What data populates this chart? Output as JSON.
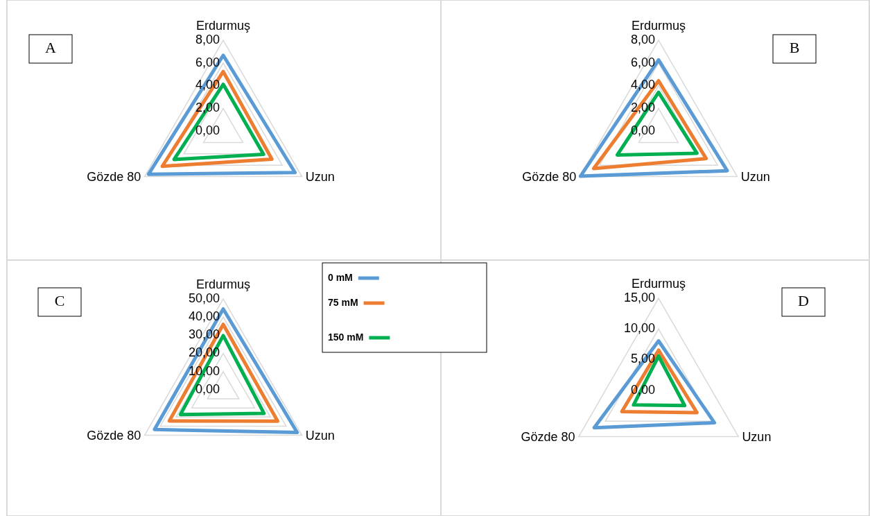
{
  "chart_data": [
    {
      "type": "radar",
      "categories": [
        "Erdurmuş",
        "Uzun",
        "Gözde 80"
      ],
      "ylim": [
        0,
        8
      ],
      "yticks": [
        {
          "value": 0,
          "label": "0,00"
        },
        {
          "value": 2,
          "label": "2,00"
        },
        {
          "value": 4,
          "label": "4,00"
        },
        {
          "value": 6,
          "label": "6,00"
        },
        {
          "value": 8,
          "label": "8,00"
        }
      ],
      "grid": true,
      "annotations": [
        "A"
      ],
      "series": [
        {
          "color": "#5b9bd5",
          "values": [
            6.67,
            7.3,
            7.6
          ]
        },
        {
          "color": "#ed7d31",
          "values": [
            5.24,
            4.95,
            6.2
          ]
        },
        {
          "color": "#00b050",
          "values": [
            4.12,
            4.1,
            5.0
          ]
        }
      ]
    },
    {
      "type": "radar",
      "categories": [
        "Erdurmuş",
        "Uzun",
        "Gözde 80"
      ],
      "ylim": [
        0,
        8
      ],
      "yticks": [
        {
          "value": 0,
          "label": "0,00"
        },
        {
          "value": 2,
          "label": "2,00"
        },
        {
          "value": 4,
          "label": "4,00"
        },
        {
          "value": 6,
          "label": "6,00"
        },
        {
          "value": 8,
          "label": "8,00"
        }
      ],
      "grid": true,
      "annotations": [
        "B"
      ],
      "series": [
        {
          "color": "#5b9bd5",
          "values": [
            6.27,
            6.98,
            7.95
          ]
        },
        {
          "color": "#ed7d31",
          "values": [
            4.43,
            4.84,
            6.6
          ]
        },
        {
          "color": "#00b050",
          "values": [
            3.41,
            3.9,
            4.2
          ]
        }
      ]
    },
    {
      "type": "radar",
      "categories": [
        "Erdurmuş",
        "Uzun",
        "Gözde 80"
      ],
      "ylim": [
        0,
        50
      ],
      "yticks": [
        {
          "value": 0,
          "label": "0,00"
        },
        {
          "value": 10,
          "label": "10,00"
        },
        {
          "value": 20,
          "label": "20,00"
        },
        {
          "value": 30,
          "label": "30,00"
        },
        {
          "value": 40,
          "label": "40,00"
        },
        {
          "value": 50,
          "label": "50,00"
        }
      ],
      "grid": true,
      "annotations": [
        "C"
      ],
      "legend": "top right",
      "series": [
        {
          "name": "0 mM",
          "color": "#5b9bd5",
          "values": [
            44.5,
            47,
            43.7
          ]
        },
        {
          "name": "75 mM",
          "color": "#ed7d31",
          "values": [
            36.0,
            34.6,
            34.3
          ]
        },
        {
          "name": "150 mM",
          "color": "#00b050",
          "values": [
            29.8,
            25.9,
            27.2
          ]
        }
      ]
    },
    {
      "type": "radar",
      "categories": [
        "Erdurmuş",
        "Uzun",
        "Gözde 80"
      ],
      "ylim": [
        0,
        15
      ],
      "yticks": [
        {
          "value": 0,
          "label": "0,00"
        },
        {
          "value": 5,
          "label": "5,00"
        },
        {
          "value": 10,
          "label": "10,00"
        },
        {
          "value": 15,
          "label": "15,00"
        }
      ],
      "grid": true,
      "annotations": [
        "D"
      ],
      "series": [
        {
          "color": "#5b9bd5",
          "values": [
            8.06,
            10.5,
            12.1
          ]
        },
        {
          "color": "#ed7d31",
          "values": [
            6.55,
            7.2,
            6.9
          ]
        },
        {
          "color": "#00b050",
          "values": [
            5.6,
            4.9,
            4.7
          ]
        }
      ]
    }
  ]
}
